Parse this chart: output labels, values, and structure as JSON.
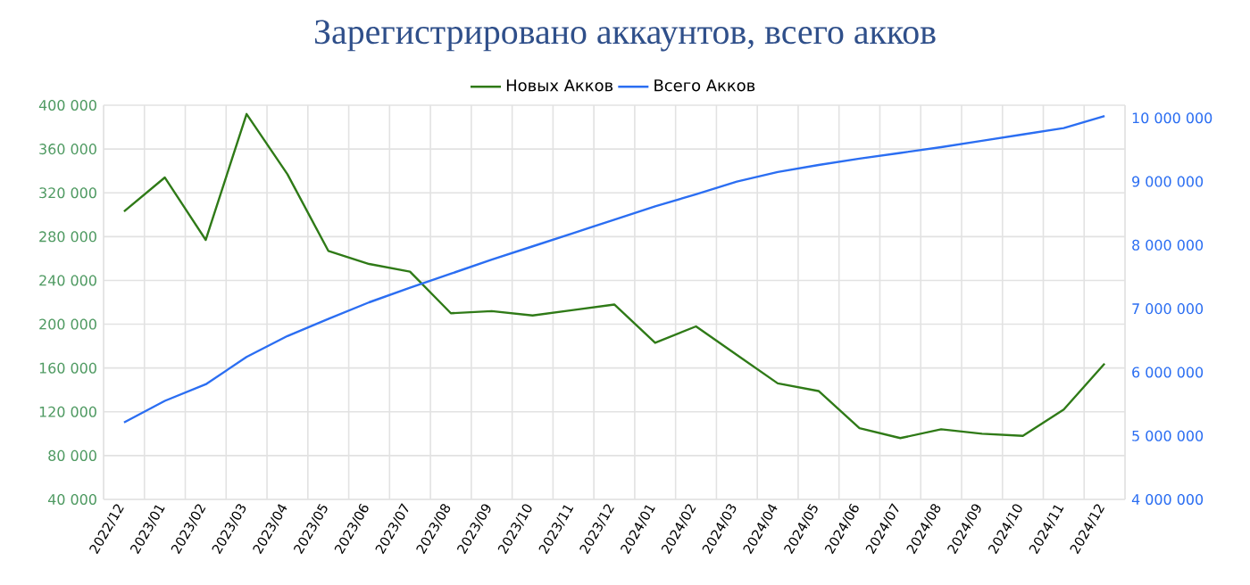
{
  "chart_data": {
    "type": "line",
    "title": "Зарегистрировано аккаунтов, всего акков",
    "categories": [
      "2022/12",
      "2023/01",
      "2023/02",
      "2023/03",
      "2023/04",
      "2023/05",
      "2023/06",
      "2023/07",
      "2023/08",
      "2023/09",
      "2023/10",
      "2023/11",
      "2023/12",
      "2024/01",
      "2024/02",
      "2024/03",
      "2024/04",
      "2024/05",
      "2024/06",
      "2024/07",
      "2024/08",
      "2024/09",
      "2024/10",
      "2024/11",
      "2024/12"
    ],
    "series": [
      {
        "name": "Новых Акков",
        "color": "#2f7a17",
        "values": [
          303000,
          334000,
          277000,
          392000,
          337000,
          267000,
          255000,
          248000,
          210000,
          212000,
          208000,
          213000,
          218000,
          183000,
          198000,
          172000,
          146000,
          139000,
          105000,
          96000,
          104000,
          100000,
          98000,
          122000,
          164000
        ]
      },
      {
        "name": "Всего Акков",
        "color": "#2b6ef2",
        "axis": "y2",
        "values": [
          5210000,
          5550000,
          5810000,
          6240000,
          6570000,
          6840000,
          7100000,
          7330000,
          7550000,
          7770000,
          7980000,
          8190000,
          8400000,
          8610000,
          8800000,
          9000000,
          9150000,
          9260000,
          9360000,
          9450000,
          9540000,
          9640000,
          9740000,
          9840000,
          10030000
        ]
      }
    ],
    "ylim": [
      40000,
      400000
    ],
    "yticks": [
      {
        "value": 40000,
        "label": "40 000"
      },
      {
        "value": 80000,
        "label": "80 000"
      },
      {
        "value": 120000,
        "label": "120 000"
      },
      {
        "value": 160000,
        "label": "160 000"
      },
      {
        "value": 200000,
        "label": "200 000"
      },
      {
        "value": 240000,
        "label": "240 000"
      },
      {
        "value": 280000,
        "label": "280 000"
      },
      {
        "value": 320000,
        "label": "320 000"
      },
      {
        "value": 360000,
        "label": "360 000"
      },
      {
        "value": 400000,
        "label": "400 000"
      }
    ],
    "y2lim": [
      4000000,
      10200000
    ],
    "y2ticks": [
      {
        "value": 4000000,
        "label": "4 000 000"
      },
      {
        "value": 5000000,
        "label": "5 000 000"
      },
      {
        "value": 6000000,
        "label": "6 000 000"
      },
      {
        "value": 7000000,
        "label": "7 000 000"
      },
      {
        "value": 8000000,
        "label": "8 000 000"
      },
      {
        "value": 9000000,
        "label": "9 000 000"
      },
      {
        "value": 10000000,
        "label": "10 000 000"
      }
    ],
    "grid": true,
    "legend": "top"
  }
}
